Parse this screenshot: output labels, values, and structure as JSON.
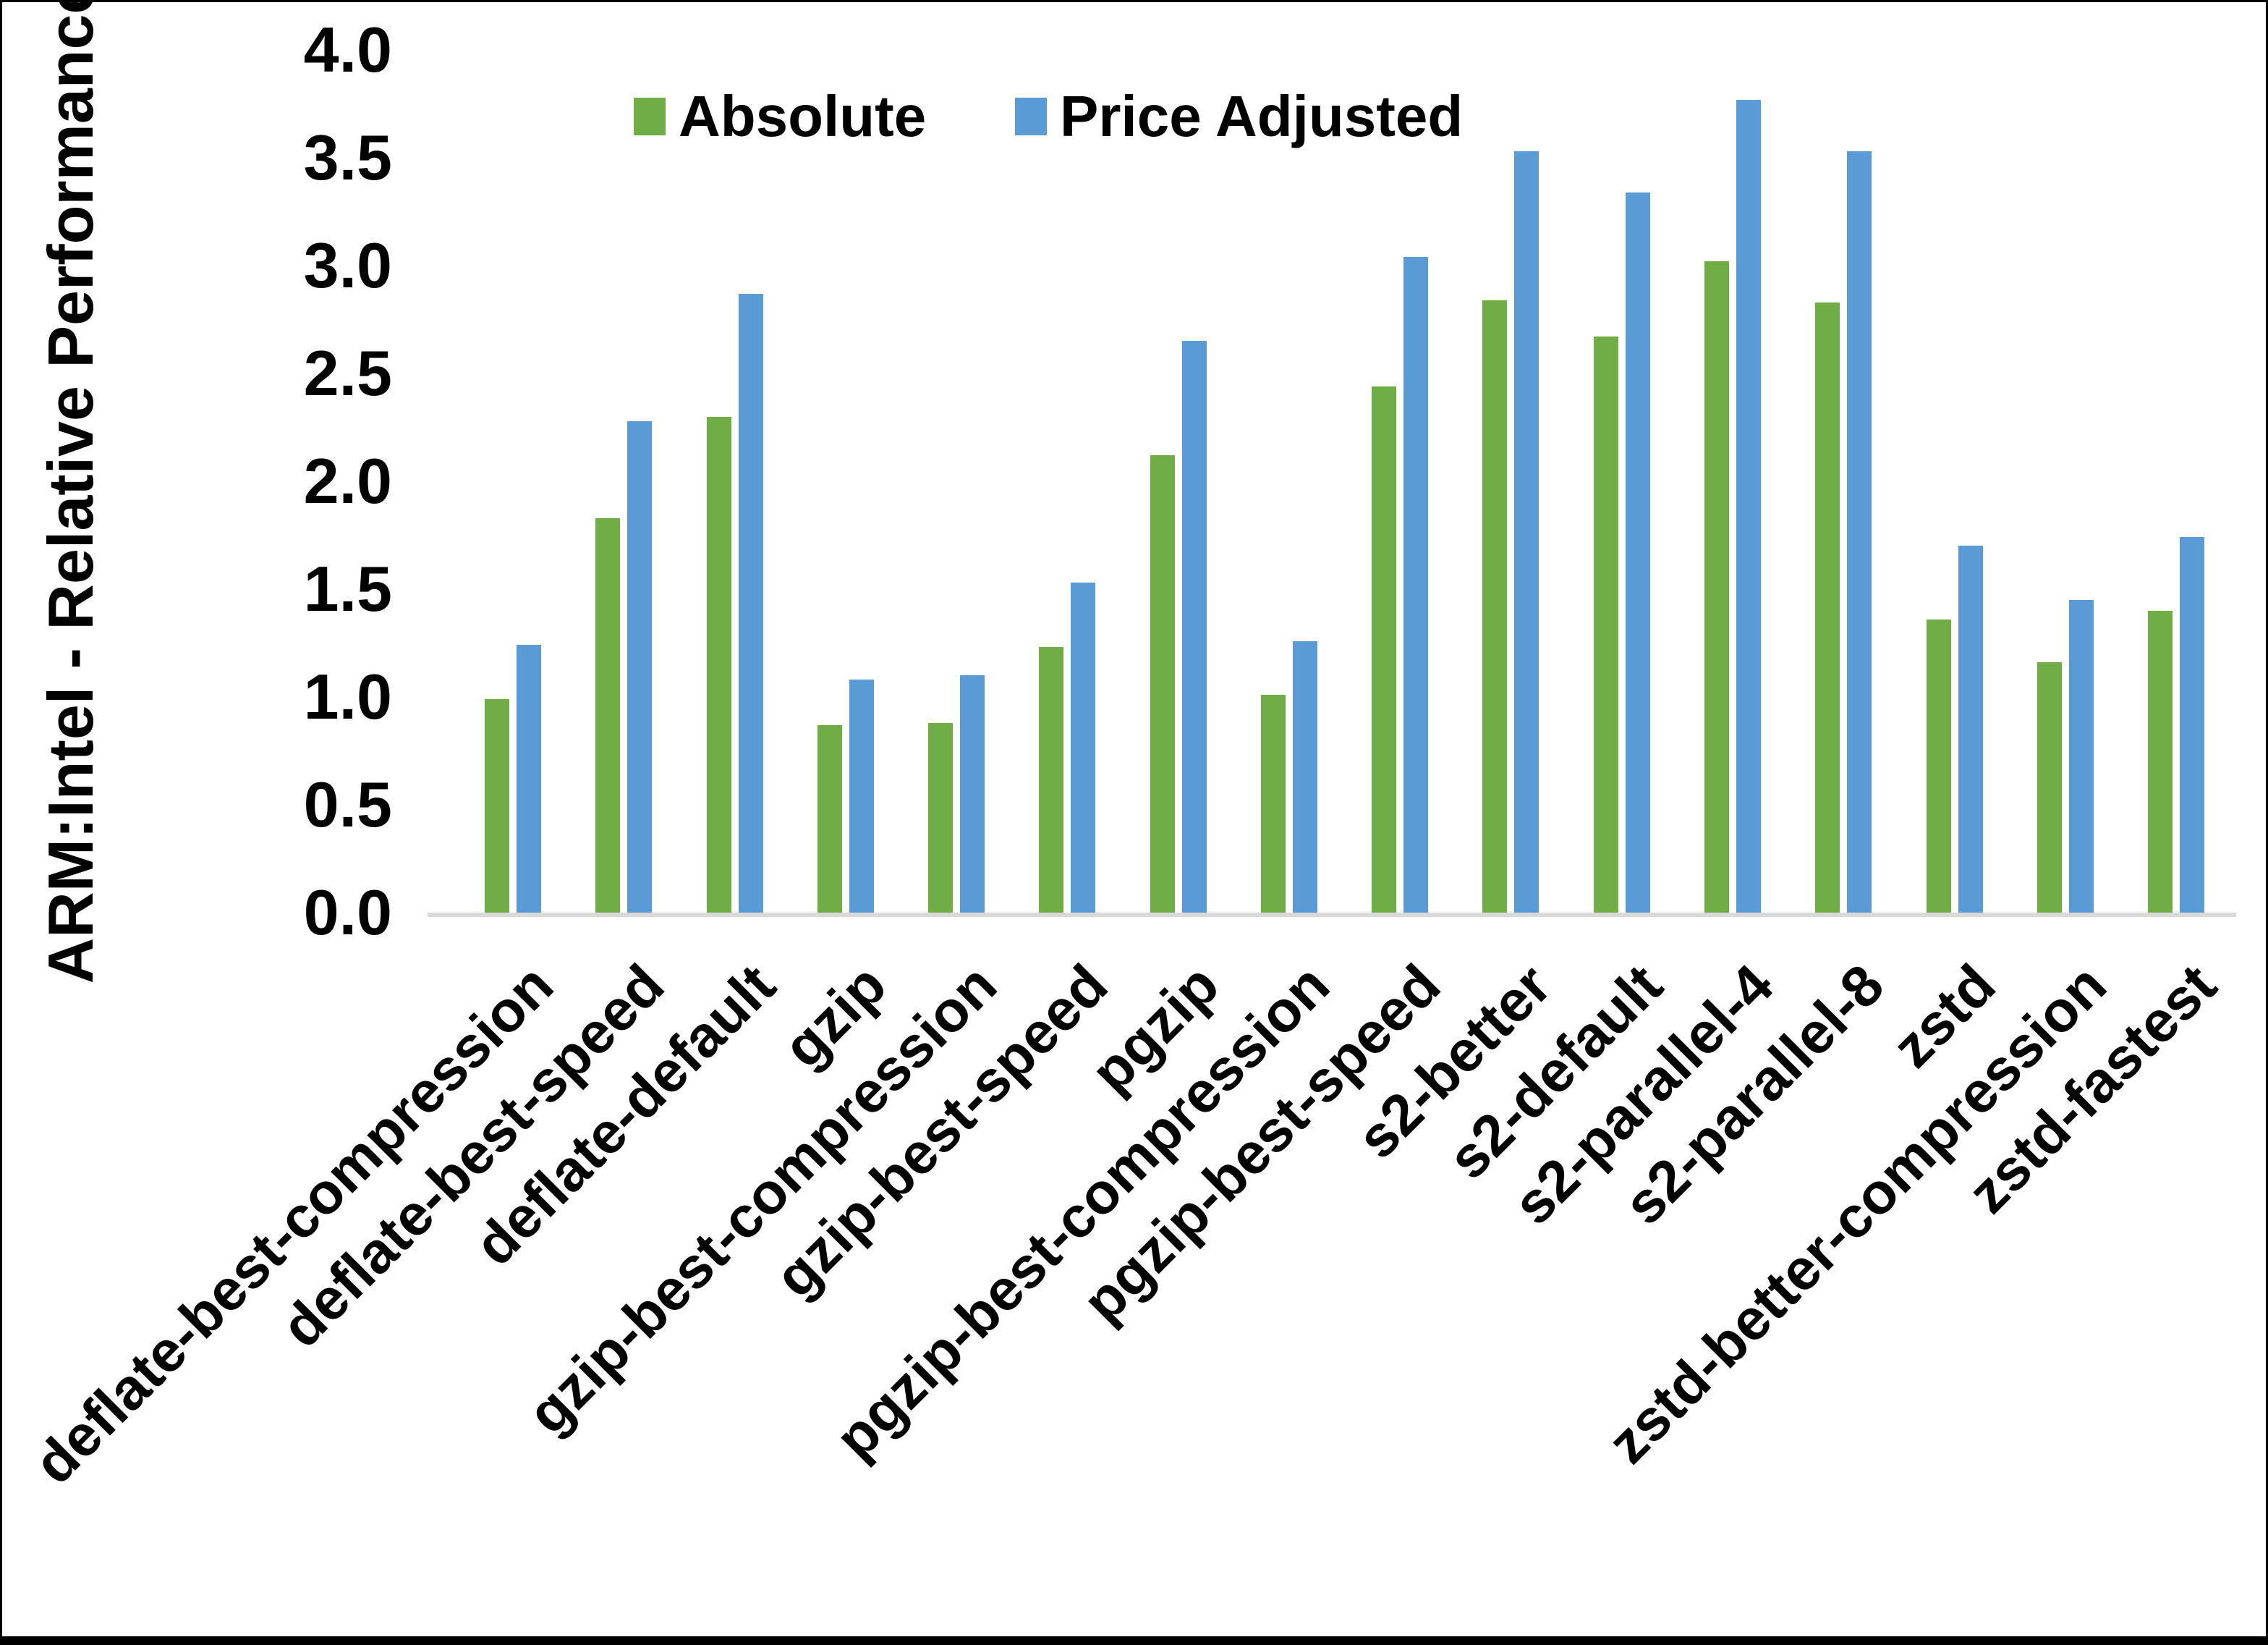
{
  "figure": {
    "background": "#ffffff",
    "border_color": "#000000",
    "axis_line_color": "#d9d9d9"
  },
  "chart_data": {
    "type": "bar",
    "title": "",
    "xlabel": "",
    "ylabel": "ARM:Intel - Relative Performance",
    "ylim": [
      0.0,
      4.0
    ],
    "y_tick_step": 0.5,
    "y_ticks": [
      "0.0",
      "0.5",
      "1.0",
      "1.5",
      "2.0",
      "2.5",
      "3.0",
      "3.5",
      "4.0"
    ],
    "grid": false,
    "legend_position": "top-center",
    "categories": [
      "deflate-best-compression",
      "deflate-best-speed",
      "deflate-default",
      "gzip",
      "gzip-best-compression",
      "gzip-best-speed",
      "pgzip",
      "pgzip-best-compression",
      "pgzip-best-speed",
      "s2-better",
      "s2-default",
      "s2-parallel-4",
      "s2-parallel-8",
      "zstd",
      "zstd-better-compression",
      "zstd-fastest"
    ],
    "series": [
      {
        "name": "Absolute",
        "color": "#70AD47",
        "values": [
          0.99,
          1.83,
          2.3,
          0.87,
          0.88,
          1.23,
          2.12,
          1.01,
          2.44,
          2.84,
          2.67,
          3.02,
          2.83,
          1.36,
          1.16,
          1.4
        ]
      },
      {
        "name": "Price Adjusted",
        "color": "#5B9BD5",
        "values": [
          1.24,
          2.28,
          2.87,
          1.08,
          1.1,
          1.53,
          2.65,
          1.26,
          3.04,
          3.53,
          3.34,
          3.77,
          3.53,
          1.7,
          1.45,
          1.74
        ]
      }
    ]
  }
}
